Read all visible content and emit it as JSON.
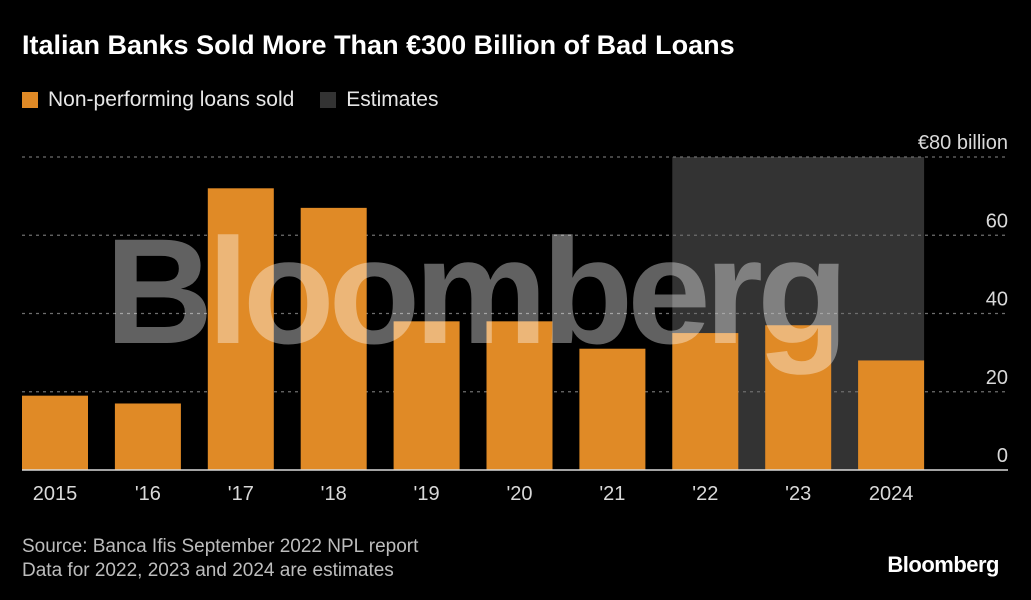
{
  "title": "Italian Banks Sold More Than €300 Billion of Bad Loans",
  "legend": [
    {
      "label": "Non-performing loans sold",
      "color": "#e08a26"
    },
    {
      "label": "Estimates",
      "color": "#333333"
    }
  ],
  "source_lines": [
    "Source: Banca Ifis September 2022 NPL report",
    "Data for 2022, 2023 and 2024 are estimates"
  ],
  "logo": "Bloomberg",
  "watermark": "Bloomberg",
  "chart_data": {
    "type": "bar",
    "categories": [
      "2015",
      "'16",
      "'17",
      "'18",
      "'19",
      "'20",
      "'21",
      "'22",
      "'23",
      "2024"
    ],
    "series": [
      {
        "name": "Non-performing loans sold",
        "values": [
          19,
          17,
          72,
          67,
          38,
          38,
          31,
          35,
          37,
          28
        ]
      }
    ],
    "estimate_range": [
      "'22",
      "2024"
    ],
    "ylim": [
      0,
      80
    ],
    "yticks": [
      0,
      20,
      40,
      60,
      80
    ],
    "ytick_labels": [
      "0",
      "20",
      "40",
      "60",
      "€80 billion"
    ],
    "grid": true,
    "colors": {
      "bar": "#e08a26",
      "estimate_shade": "#333333",
      "grid": "#6e6e6e",
      "tick_text": "#d9d9d9"
    }
  }
}
